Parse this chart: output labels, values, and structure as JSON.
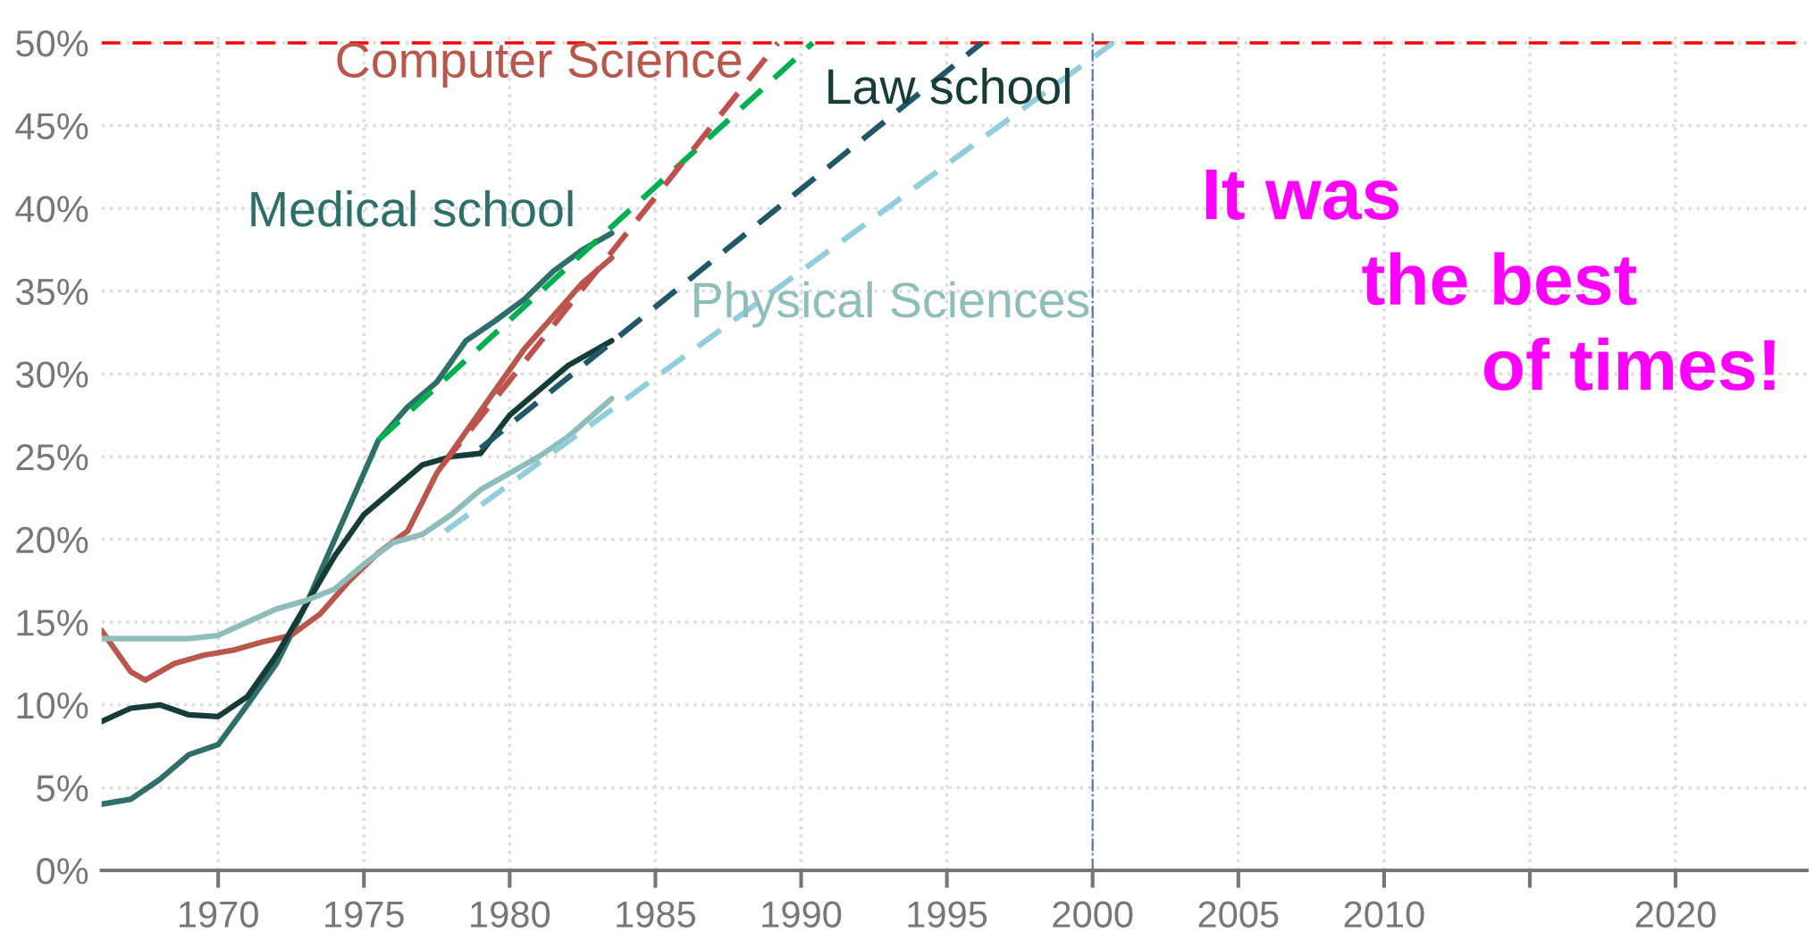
{
  "chart_data": {
    "type": "line",
    "series": [
      {
        "name": "Medical school",
        "color": "#2f6f69",
        "x": [
          1966,
          1967,
          1968,
          1969,
          1970,
          1971,
          1972,
          1973,
          1974,
          1975,
          1975.5,
          1976.5,
          1977.5,
          1978.5,
          1979.5,
          1980.5,
          1981.5,
          1982.5,
          1983.5
        ],
        "values": [
          4,
          4.3,
          5.5,
          7,
          7.6,
          10,
          12.5,
          16,
          20,
          24,
          26,
          28,
          29.5,
          32,
          33.2,
          34.5,
          36.2,
          37.5,
          38.5
        ]
      },
      {
        "name": "Computer Science",
        "color": "#b8574c",
        "x": [
          1966,
          1967,
          1967.5,
          1968.5,
          1969.5,
          1970.5,
          1971.5,
          1972.5,
          1973.5,
          1974.5,
          1975.5,
          1976.5,
          1977.5,
          1978.5,
          1979.5,
          1980.5,
          1981.5,
          1982.5,
          1983.5
        ],
        "values": [
          14.5,
          12,
          11.5,
          12.5,
          13,
          13.3,
          13.8,
          14.2,
          15.5,
          17.5,
          19.2,
          20.5,
          24,
          26.5,
          29,
          31.5,
          33.5,
          35.5,
          37
        ]
      },
      {
        "name": "Law school",
        "color": "#163c38",
        "x": [
          1966,
          1967,
          1968,
          1969,
          1970,
          1971,
          1972,
          1973,
          1974,
          1975,
          1976,
          1977,
          1978,
          1979,
          1980,
          1981,
          1982,
          1983.5
        ],
        "values": [
          9,
          9.8,
          10,
          9.4,
          9.3,
          10.5,
          13,
          16,
          19,
          21.5,
          23,
          24.5,
          25,
          25.2,
          27.5,
          29,
          30.5,
          32
        ]
      },
      {
        "name": "Physical Sciences",
        "color": "#8fbdb9",
        "x": [
          1966,
          1967,
          1968,
          1969,
          1970,
          1971,
          1972,
          1973,
          1974,
          1975,
          1976,
          1977,
          1978,
          1979,
          1980,
          1981,
          1982,
          1983.5
        ],
        "values": [
          14,
          14,
          14,
          14,
          14.2,
          15,
          15.8,
          16.3,
          17,
          18.5,
          19.8,
          20.3,
          21.5,
          23,
          24,
          25,
          26.2,
          28.5
        ]
      },
      {
        "color": "#00b050",
        "line_style": "dashed",
        "x": [
          1975.5,
          1990.4
        ],
        "values": [
          26,
          50
        ]
      },
      {
        "color": "#c0504d",
        "line_style": "dashed",
        "x": [
          1977.7,
          1989.2
        ],
        "values": [
          24.5,
          50
        ]
      },
      {
        "color": "#215868",
        "line_style": "dashed",
        "x": [
          1979,
          1996.2
        ],
        "values": [
          25.5,
          50
        ]
      },
      {
        "color": "#92cddc",
        "line_style": "dashed",
        "x": [
          1977.8,
          2000.7
        ],
        "values": [
          20.5,
          50
        ]
      }
    ],
    "line_style": "solid",
    "xlim": [
      1966,
      2024.5
    ],
    "ylim": [
      0,
      50.6
    ],
    "xticks": [
      1970,
      1975,
      1980,
      1985,
      1990,
      1995,
      2000,
      2005,
      2010,
      {
        "value": 2015,
        "label": null
      },
      2020
    ],
    "yticks": [
      {
        "value": 0,
        "label": "0%"
      },
      {
        "value": 5,
        "label": "5%"
      },
      {
        "value": 10,
        "label": "10%"
      },
      {
        "value": 15,
        "label": "15%"
      },
      {
        "value": 20,
        "label": "20%"
      },
      {
        "value": 25,
        "label": "25%"
      },
      {
        "value": 30,
        "label": "30%"
      },
      {
        "value": 35,
        "label": "35%"
      },
      {
        "value": 40,
        "label": "40%"
      },
      {
        "value": 45,
        "label": "45%"
      },
      {
        "value": 50,
        "label": "50%"
      }
    ],
    "grid": true,
    "ref_lines": [
      {
        "axis": "y",
        "value": 50,
        "color": "#ff0000",
        "line_style": "dashed"
      },
      {
        "axis": "x",
        "value": 2000,
        "color": "#4472c4",
        "line_style": "dashdot"
      }
    ],
    "annotations": [
      "It was\n        the best\n              of times!"
    ]
  }
}
